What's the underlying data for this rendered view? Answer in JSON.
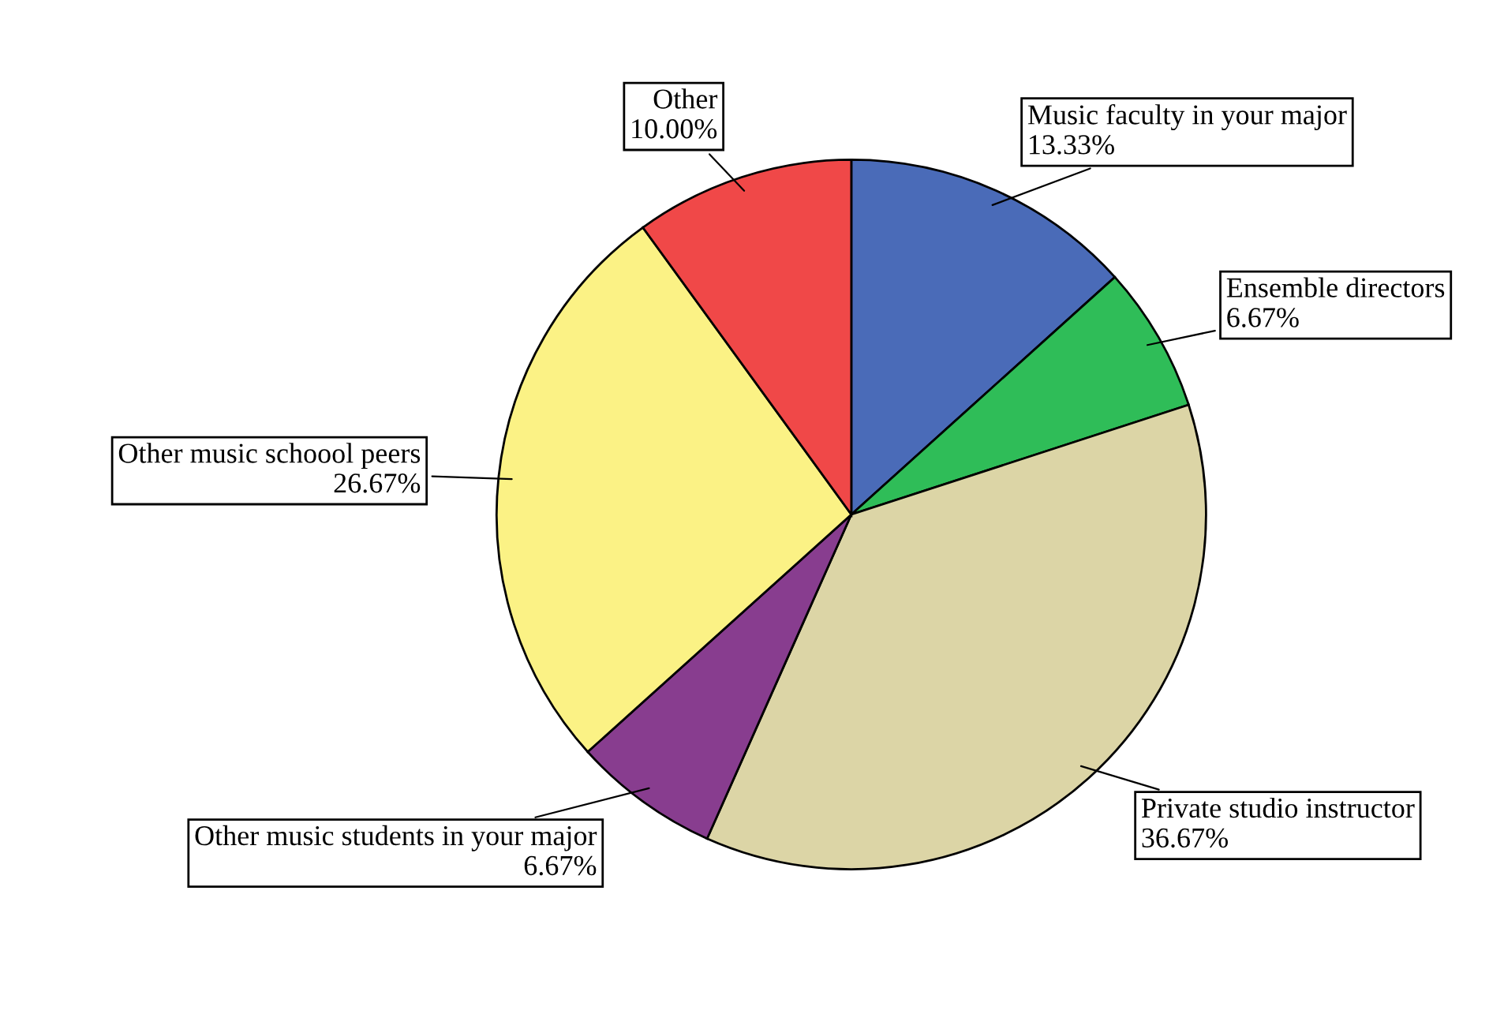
{
  "chart_data": {
    "type": "pie",
    "categories": [
      "Music faculty in your major",
      "Ensemble directors",
      "Private studio instructor",
      "Other music students in your major",
      "Other music schoool peers",
      "Other"
    ],
    "values": [
      13.33,
      6.67,
      36.67,
      6.67,
      26.67,
      10.0
    ],
    "value_labels": [
      "13.33%",
      "6.67%",
      "36.67%",
      "6.67%",
      "26.67%",
      "10.00%"
    ],
    "colors": [
      "#4a6bb8",
      "#2fbd58",
      "#dcd5a6",
      "#883d8f",
      "#fbf285",
      "#f04848"
    ]
  }
}
